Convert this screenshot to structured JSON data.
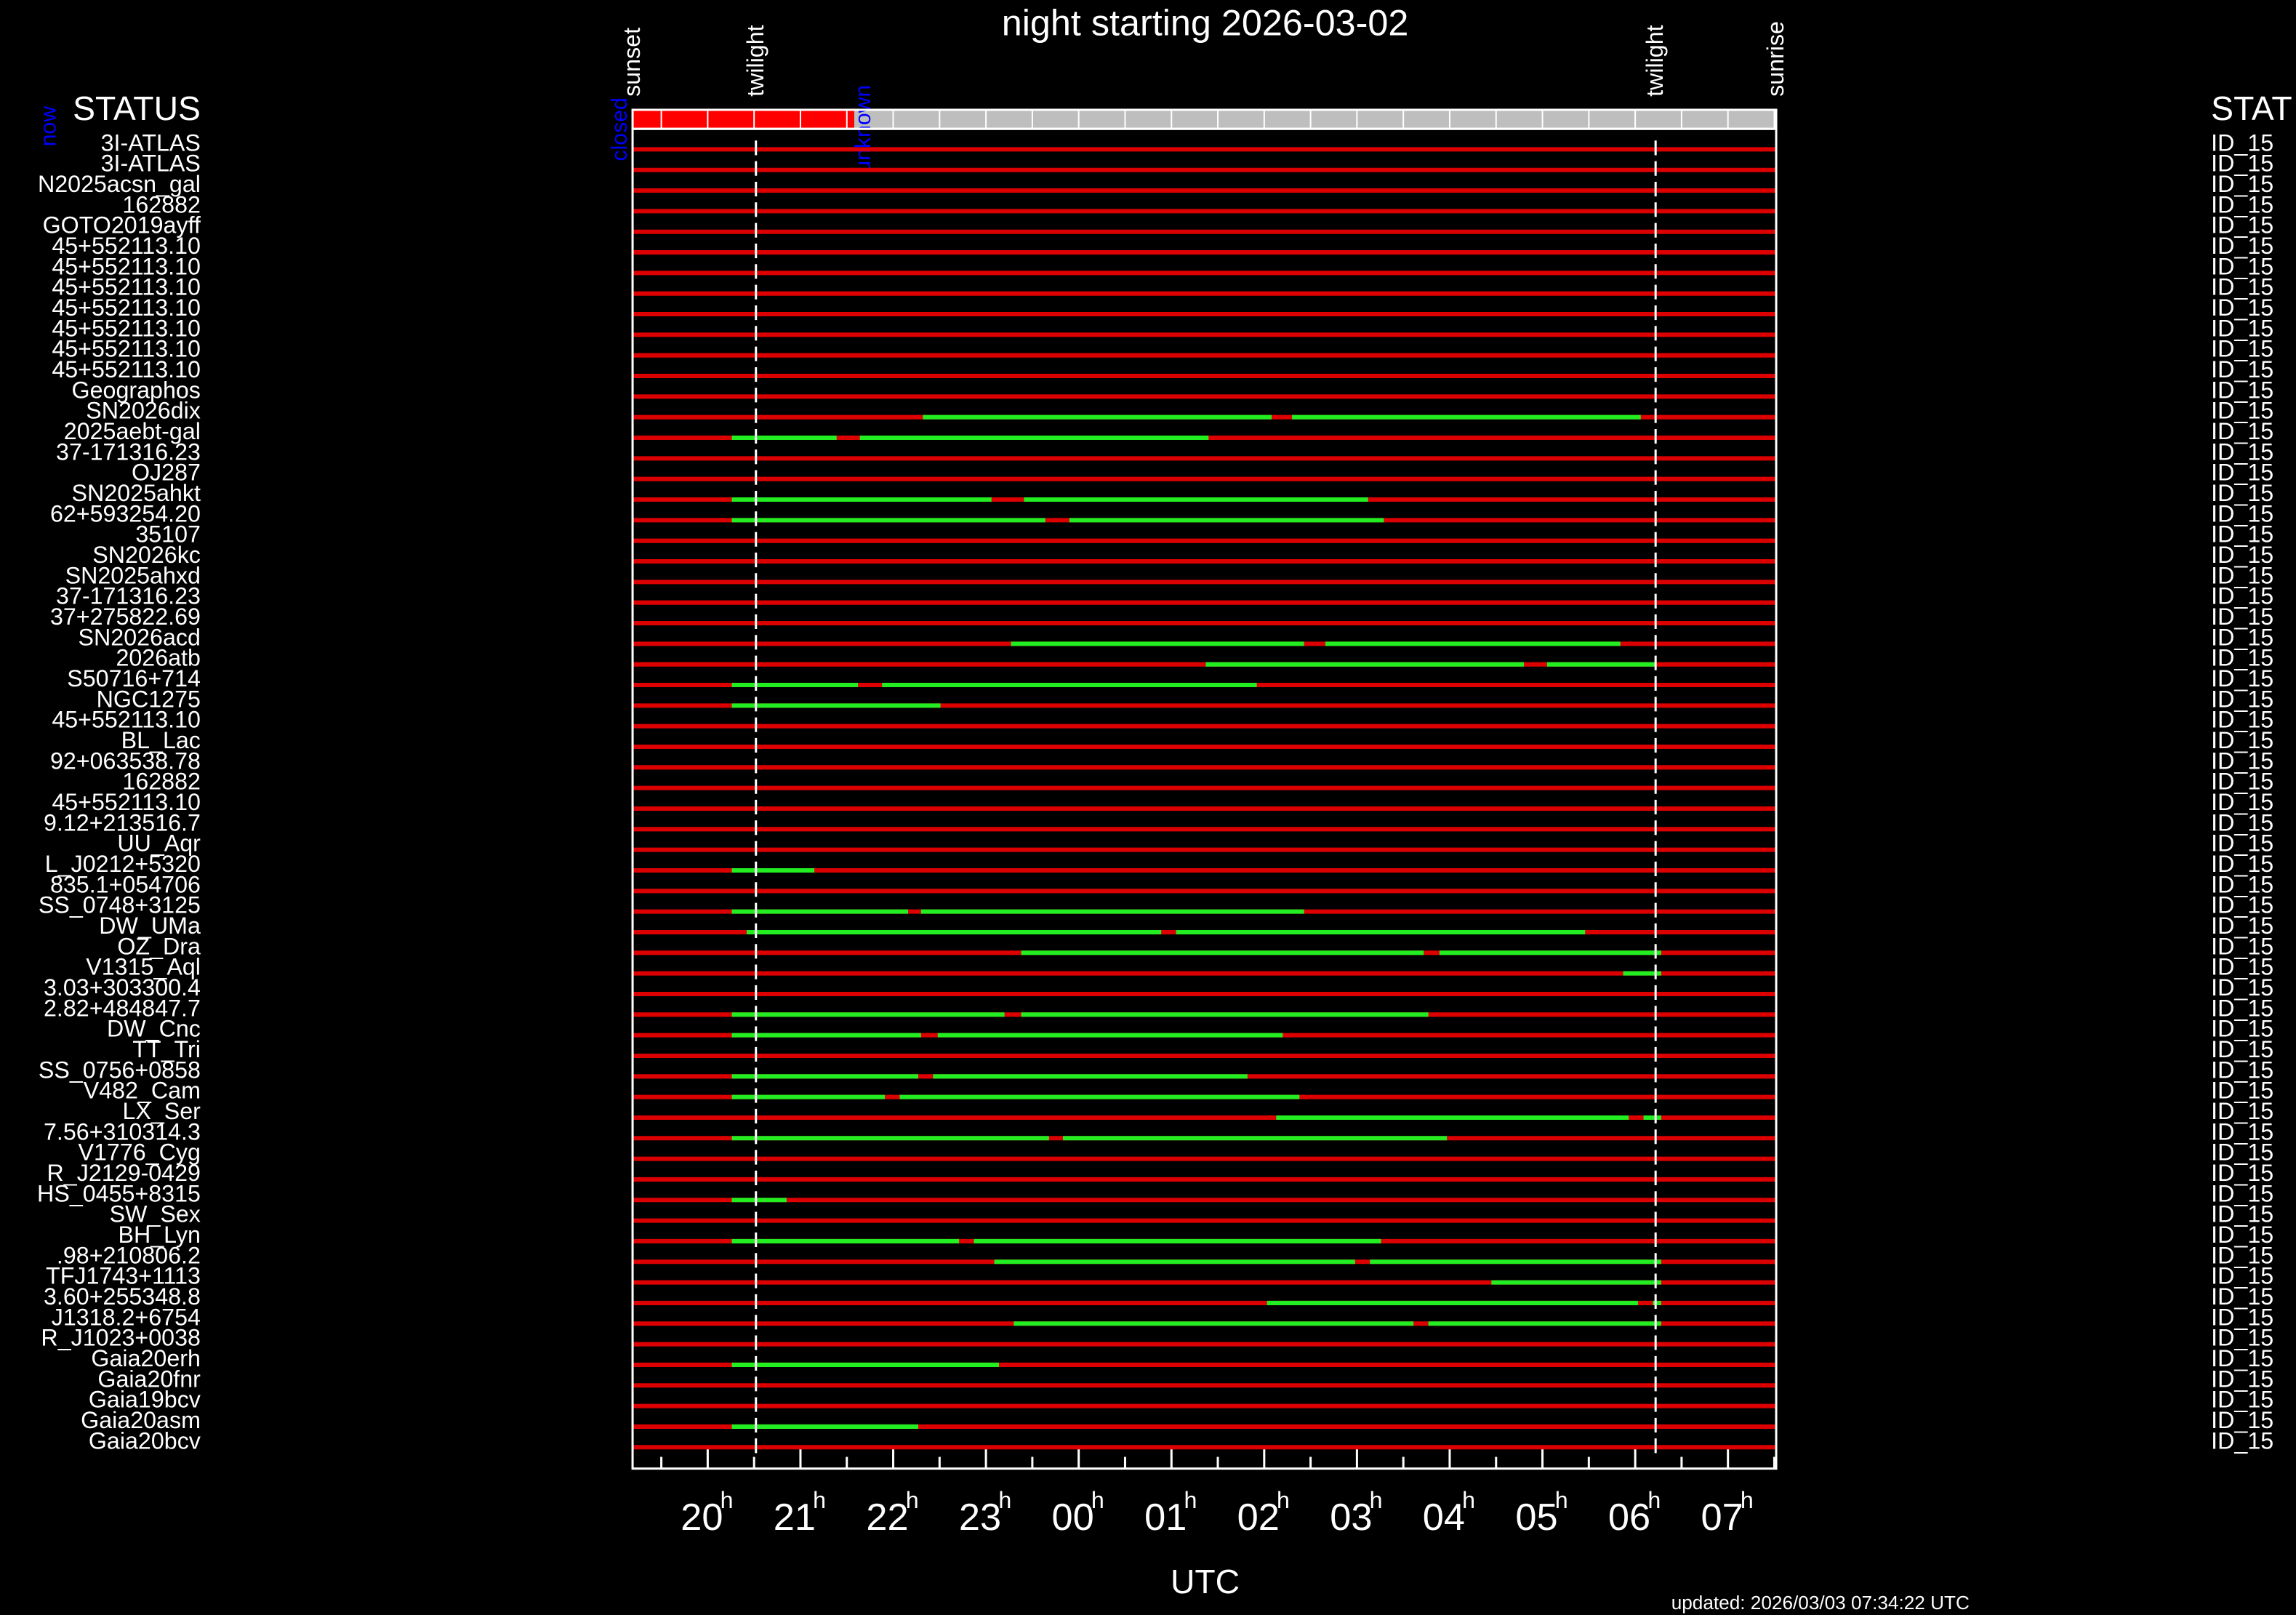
{
  "chart_data": {
    "type": "timeline",
    "title": "night starting 2026-03-02",
    "xlabel": "UTC",
    "updated": "updated: 2026/03/03 07:34:22 UTC",
    "left_header": "STATUS",
    "right_header": "STAT",
    "now_label": "now",
    "tick_unit": "h",
    "xlim": [
      19.19,
      31.52
    ],
    "xticks": [
      20,
      21,
      22,
      23,
      {
        "value": 24,
        "label": "00"
      },
      {
        "value": 25,
        "label": "01"
      },
      {
        "value": 26,
        "label": "02"
      },
      {
        "value": 27,
        "label": "03"
      },
      {
        "value": 28,
        "label": "04"
      },
      {
        "value": 29,
        "label": "05"
      },
      {
        "value": 30,
        "label": "06"
      },
      {
        "value": 31,
        "label": "07"
      }
    ],
    "events": [
      {
        "label": "sunset",
        "time": 19.19
      },
      {
        "label": "twilight",
        "time": 20.52
      },
      {
        "label": "twilight",
        "time": 30.22
      },
      {
        "label": "sunrise",
        "time": 31.52
      }
    ],
    "status": [
      {
        "label": "closed",
        "start": 19.19,
        "end": 21.58,
        "color": "#ff0000"
      },
      {
        "label": "unknown",
        "start": 21.58,
        "end": 31.52,
        "color": "#bebebe"
      }
    ],
    "unobservable_color": "#dd0000",
    "visible_color": "#22ee22",
    "rows": [
      {
        "name": "3I-ATLAS",
        "id": "ID_15",
        "visible": []
      },
      {
        "name": "3I-ATLAS",
        "id": "ID_15",
        "visible": []
      },
      {
        "name": "N2025acsn_gal",
        "id": "ID_15",
        "visible": []
      },
      {
        "name": "162882",
        "id": "ID_15",
        "visible": []
      },
      {
        "name": "GOTO2019ayff",
        "id": "ID_15",
        "visible": []
      },
      {
        "name": "45+552113.10",
        "id": "ID_15",
        "visible": []
      },
      {
        "name": "45+552113.10",
        "id": "ID_15",
        "visible": []
      },
      {
        "name": "45+552113.10",
        "id": "ID_15",
        "visible": []
      },
      {
        "name": "45+552113.10",
        "id": "ID_15",
        "visible": []
      },
      {
        "name": "45+552113.10",
        "id": "ID_15",
        "visible": []
      },
      {
        "name": "45+552113.10",
        "id": "ID_15",
        "visible": []
      },
      {
        "name": "45+552113.10",
        "id": "ID_15",
        "visible": []
      },
      {
        "name": "Geographos",
        "id": "ID_15",
        "visible": []
      },
      {
        "name": "SN2026dix",
        "id": "ID_15",
        "visible": [
          [
            22.32,
            26.08
          ],
          [
            26.3,
            30.06
          ]
        ]
      },
      {
        "name": "2025aebt-gal",
        "id": "ID_15",
        "visible": [
          [
            20.26,
            21.39
          ],
          [
            21.64,
            25.4
          ]
        ]
      },
      {
        "name": "37-171316.23",
        "id": "ID_15",
        "visible": []
      },
      {
        "name": "OJ287",
        "id": "ID_15",
        "visible": []
      },
      {
        "name": "SN2025ahkt",
        "id": "ID_15",
        "visible": [
          [
            20.26,
            23.06
          ],
          [
            23.41,
            27.12
          ]
        ]
      },
      {
        "name": "62+593254.20",
        "id": "ID_15",
        "visible": [
          [
            20.26,
            23.64
          ],
          [
            23.9,
            27.29
          ]
        ]
      },
      {
        "name": "35107",
        "id": "ID_15",
        "visible": []
      },
      {
        "name": "SN2026kc",
        "id": "ID_15",
        "visible": []
      },
      {
        "name": "SN2025ahxd",
        "id": "ID_15",
        "visible": []
      },
      {
        "name": "37-171316.23",
        "id": "ID_15",
        "visible": []
      },
      {
        "name": "37+275822.69",
        "id": "ID_15",
        "visible": []
      },
      {
        "name": "SN2026acd",
        "id": "ID_15",
        "visible": [
          [
            23.27,
            26.43
          ],
          [
            26.66,
            29.84
          ]
        ]
      },
      {
        "name": "2026atb",
        "id": "ID_15",
        "visible": [
          [
            25.37,
            28.8
          ],
          [
            29.05,
            30.22
          ]
        ]
      },
      {
        "name": "S50716+714",
        "id": "ID_15",
        "visible": [
          [
            20.26,
            21.62
          ],
          [
            21.88,
            25.92
          ]
        ]
      },
      {
        "name": "NGC1275",
        "id": "ID_15",
        "visible": [
          [
            20.26,
            22.51
          ]
        ]
      },
      {
        "name": "45+552113.10",
        "id": "ID_15",
        "visible": []
      },
      {
        "name": "BL_Lac",
        "id": "ID_15",
        "visible": []
      },
      {
        "name": "92+063538.78",
        "id": "ID_15",
        "visible": []
      },
      {
        "name": "162882",
        "id": "ID_15",
        "visible": []
      },
      {
        "name": "45+552113.10",
        "id": "ID_15",
        "visible": []
      },
      {
        "name": "9.12+213516.7",
        "id": "ID_15",
        "visible": []
      },
      {
        "name": "UU_Aqr",
        "id": "ID_15",
        "visible": []
      },
      {
        "name": "L_J0212+5320",
        "id": "ID_15",
        "visible": [
          [
            20.26,
            21.15
          ]
        ]
      },
      {
        "name": "835.1+054706",
        "id": "ID_15",
        "visible": []
      },
      {
        "name": "SS_0748+3125",
        "id": "ID_15",
        "visible": [
          [
            20.26,
            22.16
          ],
          [
            22.3,
            26.43
          ]
        ]
      },
      {
        "name": "DW_UMa",
        "id": "ID_15",
        "visible": [
          [
            20.42,
            24.89
          ],
          [
            25.05,
            29.46
          ]
        ]
      },
      {
        "name": "OZ_Dra",
        "id": "ID_15",
        "visible": [
          [
            23.38,
            27.72
          ],
          [
            27.89,
            30.28
          ]
        ]
      },
      {
        "name": "V1315_Aql",
        "id": "ID_15",
        "visible": [
          [
            29.87,
            30.28
          ]
        ]
      },
      {
        "name": "3.03+303300.4",
        "id": "ID_15",
        "visible": []
      },
      {
        "name": "2.82+484847.7",
        "id": "ID_15",
        "visible": [
          [
            20.26,
            23.2
          ],
          [
            23.38,
            27.77
          ]
        ]
      },
      {
        "name": "DW_Cnc",
        "id": "ID_15",
        "visible": [
          [
            20.26,
            22.3
          ],
          [
            22.48,
            26.2
          ]
        ]
      },
      {
        "name": "TT_Tri",
        "id": "ID_15",
        "visible": []
      },
      {
        "name": "SS_0756+0858",
        "id": "ID_15",
        "visible": [
          [
            20.26,
            22.27
          ],
          [
            22.43,
            25.82
          ]
        ]
      },
      {
        "name": "V482_Cam",
        "id": "ID_15",
        "visible": [
          [
            20.26,
            21.91
          ],
          [
            22.07,
            26.38
          ]
        ]
      },
      {
        "name": "LX_Ser",
        "id": "ID_15",
        "visible": [
          [
            26.13,
            29.93
          ],
          [
            30.09,
            30.28
          ]
        ]
      },
      {
        "name": "7.56+310314.3",
        "id": "ID_15",
        "visible": [
          [
            20.26,
            23.68
          ],
          [
            23.83,
            27.97
          ]
        ]
      },
      {
        "name": "V1776_Cyg",
        "id": "ID_15",
        "visible": []
      },
      {
        "name": "R_J2129-0429",
        "id": "ID_15",
        "visible": []
      },
      {
        "name": "HS_0455+8315",
        "id": "ID_15",
        "visible": [
          [
            20.26,
            20.85
          ]
        ]
      },
      {
        "name": "SW_Sex",
        "id": "ID_15",
        "visible": []
      },
      {
        "name": "BH_Lyn",
        "id": "ID_15",
        "visible": [
          [
            20.26,
            22.71
          ],
          [
            22.87,
            27.26
          ]
        ]
      },
      {
        "name": ".98+210806.2",
        "id": "ID_15",
        "visible": [
          [
            23.09,
            26.98
          ],
          [
            27.14,
            30.28
          ]
        ]
      },
      {
        "name": "TFJ1743+1113",
        "id": "ID_15",
        "visible": [
          [
            28.45,
            30.28
          ]
        ]
      },
      {
        "name": "3.60+255348.8",
        "id": "ID_15",
        "visible": [
          [
            26.03,
            30.03
          ],
          [
            30.19,
            30.28
          ]
        ]
      },
      {
        "name": "J1318.2+6754",
        "id": "ID_15",
        "visible": [
          [
            23.3,
            27.61
          ],
          [
            27.77,
            30.28
          ]
        ]
      },
      {
        "name": "R_J1023+0038",
        "id": "ID_15",
        "visible": []
      },
      {
        "name": "Gaia20erh",
        "id": "ID_15",
        "visible": [
          [
            20.26,
            23.14
          ]
        ]
      },
      {
        "name": "Gaia20fnr",
        "id": "ID_15",
        "visible": []
      },
      {
        "name": "Gaia19bcv",
        "id": "ID_15",
        "visible": []
      },
      {
        "name": "Gaia20asm",
        "id": "ID_15",
        "visible": [
          [
            20.26,
            22.27
          ]
        ]
      },
      {
        "name": "Gaia20bcv",
        "id": "ID_15",
        "visible": []
      }
    ]
  }
}
